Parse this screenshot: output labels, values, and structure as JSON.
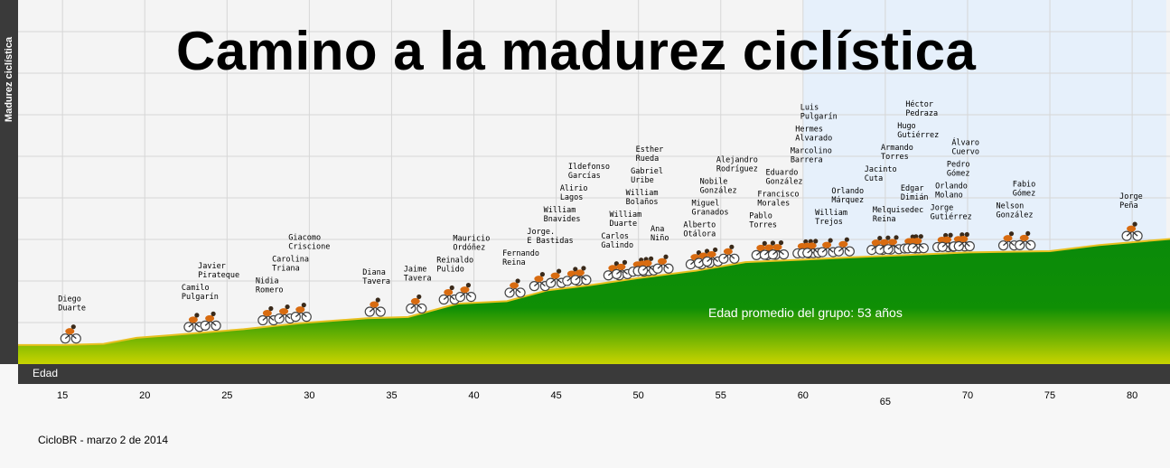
{
  "page": {
    "title": "Camino  a la madurez ciclística",
    "ylabel": "Madurez ciclística",
    "xlabel": "Edad",
    "average_label": "Edad promedio del grupo: 53 años",
    "footer": "CicloBR -  marzo 2 de 2014",
    "colors": {
      "fill_top": "#0a8a0a",
      "fill_bottom": "#c8d400",
      "profile_line": "#e8c020",
      "highlight": "#e6f0fb"
    }
  },
  "chart_data": {
    "type": "area",
    "title": "Camino  a la madurez ciclística",
    "xlabel": "Edad",
    "ylabel": "Madurez ciclística",
    "xlim": [
      12.3,
      82.3
    ],
    "xticks": [
      15,
      20,
      25,
      30,
      35,
      40,
      45,
      50,
      55,
      60,
      65,
      70,
      75,
      80
    ],
    "highlight_from": 60,
    "grid": true,
    "profile": [
      {
        "x": 12.3,
        "y": 3
      },
      {
        "x": 15,
        "y": 3
      },
      {
        "x": 17.5,
        "y": 4
      },
      {
        "x": 19.5,
        "y": 9
      },
      {
        "x": 21.5,
        "y": 11
      },
      {
        "x": 26,
        "y": 16
      },
      {
        "x": 29.5,
        "y": 21
      },
      {
        "x": 33.5,
        "y": 25
      },
      {
        "x": 36,
        "y": 26
      },
      {
        "x": 39,
        "y": 37
      },
      {
        "x": 42,
        "y": 39
      },
      {
        "x": 44.5,
        "y": 48
      },
      {
        "x": 47,
        "y": 52
      },
      {
        "x": 50,
        "y": 58
      },
      {
        "x": 53.5,
        "y": 64
      },
      {
        "x": 56.5,
        "y": 71
      },
      {
        "x": 60,
        "y": 73
      },
      {
        "x": 63,
        "y": 75
      },
      {
        "x": 66.5,
        "y": 77
      },
      {
        "x": 70,
        "y": 79
      },
      {
        "x": 75,
        "y": 80
      },
      {
        "x": 78,
        "y": 85
      },
      {
        "x": 82.3,
        "y": 90
      }
    ],
    "riders": [
      {
        "name": "Diego Duarte",
        "age": 15.5
      },
      {
        "name": "Camilo Pulgarín",
        "age": 23.0
      },
      {
        "name": "Javier Pirateque",
        "age": 24.0
      },
      {
        "name": "Nidia Romero",
        "age": 27.5
      },
      {
        "name": "Carolina Triana",
        "age": 28.5
      },
      {
        "name": "Giacomo Criscione",
        "age": 29.5
      },
      {
        "name": "Diana Tavera",
        "age": 34.0
      },
      {
        "name": "Jaime Tavera",
        "age": 36.5
      },
      {
        "name": "Reinaldo Pulido",
        "age": 38.5
      },
      {
        "name": "Mauricio Ordóñez",
        "age": 39.5
      },
      {
        "name": "Fernando Reina",
        "age": 42.5
      },
      {
        "name": "Jorge. E Bastidas",
        "age": 44.0
      },
      {
        "name": "William Bnavides",
        "age": 45.0
      },
      {
        "name": "Alirio Lagos",
        "age": 46.0
      },
      {
        "name": "Ildefonso Garcías",
        "age": 46.5
      },
      {
        "name": "Carlos Galindo",
        "age": 48.5
      },
      {
        "name": "William Duarte",
        "age": 49.0
      },
      {
        "name": "William Bolaños",
        "age": 50.0
      },
      {
        "name": "Gabriel Uribe",
        "age": 50.3
      },
      {
        "name": "Esther Rueda",
        "age": 50.6
      },
      {
        "name": "Ana Niño",
        "age": 51.5
      },
      {
        "name": "Alberto Otálora",
        "age": 53.5
      },
      {
        "name": "Miguel Granados",
        "age": 54.0
      },
      {
        "name": "Nobile González",
        "age": 54.5
      },
      {
        "name": "Alejandro Rodríguez",
        "age": 55.5
      },
      {
        "name": "Pablo Torres",
        "age": 57.5
      },
      {
        "name": "Francisco Morales",
        "age": 58.0
      },
      {
        "name": "Eduardo González",
        "age": 58.5
      },
      {
        "name": "Marcolino Barrera",
        "age": 60.0
      },
      {
        "name": "Hermes Alvarado",
        "age": 60.3
      },
      {
        "name": "Luis Pulgarín",
        "age": 60.6
      },
      {
        "name": "William Trejos",
        "age": 61.5
      },
      {
        "name": "Orlando Márquez",
        "age": 62.5
      },
      {
        "name": "Jacinto Cuta",
        "age": 64.5
      },
      {
        "name": "Melquisedec Reina",
        "age": 65.0
      },
      {
        "name": "Armando Torres",
        "age": 65.5
      },
      {
        "name": "Hugo Gutiérrez",
        "age": 66.5
      },
      {
        "name": "Edgar Dimián",
        "age": 66.7
      },
      {
        "name": "Héctor Pedraza",
        "age": 67.0
      },
      {
        "name": "Jorge Gutiérrez",
        "age": 68.5
      },
      {
        "name": "Orlando Molano",
        "age": 68.8
      },
      {
        "name": "Pedro Gómez",
        "age": 69.5
      },
      {
        "name": "Álvaro Cuervo",
        "age": 69.8
      },
      {
        "name": "Nelson González",
        "age": 72.5
      },
      {
        "name": "Fabio Gómez",
        "age": 73.5
      },
      {
        "name": "Jorge Peña",
        "age": 80.0
      }
    ]
  }
}
